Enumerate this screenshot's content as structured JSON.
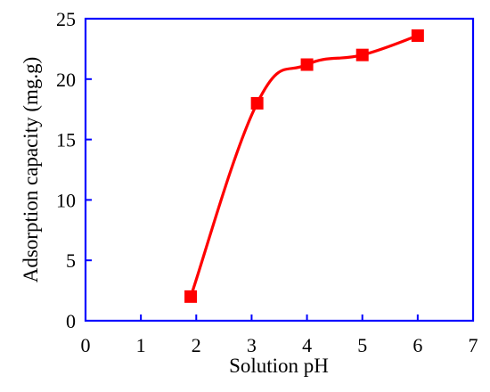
{
  "chart_data": {
    "type": "line",
    "title": "",
    "xlabel": "Solution pH",
    "ylabel": "Adsorption capacity (mg.g)",
    "xlim": [
      0,
      7
    ],
    "ylim": [
      0,
      25
    ],
    "xticks": [
      "0",
      "1",
      "2",
      "3",
      "4",
      "5",
      "6",
      "7"
    ],
    "yticks": [
      "0",
      "5",
      "10",
      "15",
      "20",
      "25"
    ],
    "grid": false,
    "legend": "none",
    "smooth": true,
    "marker": "square",
    "color": "#ff0000",
    "axis_color": "#0000ff",
    "series": [
      {
        "x": [
          1.9,
          3.1,
          4.0,
          5.0,
          6.0
        ],
        "values": [
          2.0,
          18.0,
          21.2,
          22.0,
          23.6
        ]
      }
    ]
  }
}
